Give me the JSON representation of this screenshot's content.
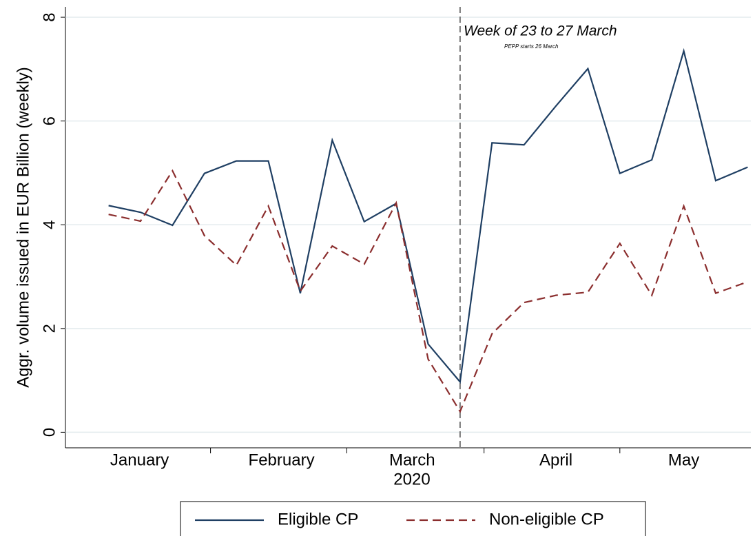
{
  "chart_data": {
    "type": "line",
    "ylabel": "Aggr. volume issued in EUR Billion (weekly)",
    "xlabel": "2020",
    "x": [
      1,
      2,
      3,
      4,
      5,
      6,
      7,
      8,
      9,
      10,
      11,
      12,
      13,
      14,
      15,
      16,
      17,
      18,
      19,
      20,
      21
    ],
    "xlim": [
      -0.35,
      21.1
    ],
    "xticks": [
      {
        "value": 1.97,
        "label": "January"
      },
      {
        "value": 6.41,
        "label": "February"
      },
      {
        "value": 10.5,
        "label": "March"
      },
      {
        "value": 15.0,
        "label": "April"
      },
      {
        "value": 19.0,
        "label": "May"
      }
    ],
    "ylim": [
      -0.3,
      8.2
    ],
    "yticks": [
      0,
      2,
      4,
      6,
      8
    ],
    "grid": true,
    "series": [
      {
        "name": "Eligible CP",
        "color": "#1f3f63",
        "dash": false,
        "values": [
          4.37,
          4.24,
          3.99,
          4.99,
          5.23,
          5.23,
          2.68,
          5.63,
          4.06,
          4.41,
          1.7,
          0.97,
          5.58,
          5.54,
          6.29,
          7.01,
          4.99,
          5.25,
          7.35,
          4.85,
          5.11
        ]
      },
      {
        "name": "Non-eligible CP",
        "color": "#8b2e2e",
        "dash": true,
        "values": [
          4.2,
          4.07,
          5.04,
          3.79,
          3.22,
          4.36,
          2.72,
          3.59,
          3.24,
          4.42,
          1.41,
          0.4,
          1.9,
          2.5,
          2.64,
          2.7,
          3.64,
          2.64,
          4.36,
          2.68,
          2.9
        ]
      }
    ],
    "vline": 12,
    "annotations": [
      "Week of 23 to 27 March",
      "PEPP starts 26 March"
    ],
    "legend": "bottom"
  }
}
